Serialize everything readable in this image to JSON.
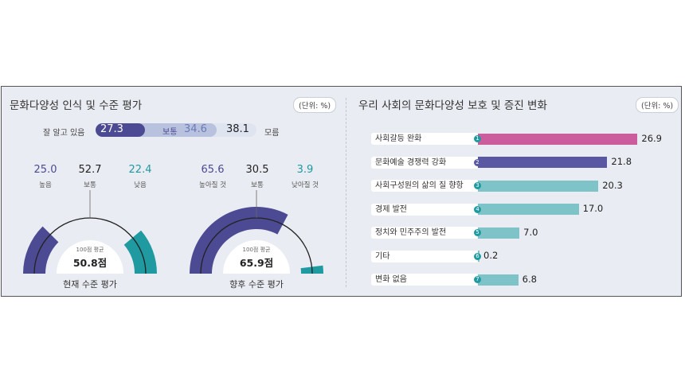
{
  "left_panel": {
    "title": "문화다양성 인식 및 수준 평가",
    "unit": "(단위: %)",
    "awareness": {
      "left_label": "잘 알고 있음",
      "mid_label": "보통",
      "right_label": "모름",
      "well_known": "27.3",
      "normal": "34.6",
      "unknown": "38.1"
    },
    "current": {
      "caption": "현재 수준 평가",
      "high_val": "25.0",
      "high_lab": "높음",
      "mid_val": "52.7",
      "mid_lab": "보통",
      "low_val": "22.4",
      "low_lab": "낮음",
      "avg_label": "100점 평균",
      "avg_value": "50.8점"
    },
    "future": {
      "caption": "향후 수준 평가",
      "high_val": "65.6",
      "high_lab": "높아질 것",
      "mid_val": "30.5",
      "mid_lab": "보통",
      "low_val": "3.9",
      "low_lab": "낮아질 것",
      "avg_label": "100점 평균",
      "avg_value": "65.9점"
    }
  },
  "right_panel": {
    "title": "우리 사회의 문화다양성 보호 및 증진 변화",
    "unit": "(단위: %)"
  },
  "colors": {
    "navy": "#4c4a92",
    "light": "#b8c1de",
    "teal": "#1f9aa0",
    "pink": "#cc5d9d",
    "purple": "#5a58a2",
    "lightteal": "#7dc3c8"
  },
  "chart_data": [
    {
      "type": "bar",
      "title": "문화다양성 인식",
      "categories": [
        "잘 알고 있음",
        "보통",
        "모름"
      ],
      "values": [
        27.3,
        34.6,
        38.1
      ]
    },
    {
      "type": "pie",
      "title": "현재 수준 평가",
      "categories": [
        "높음",
        "보통",
        "낮음"
      ],
      "values": [
        25.0,
        52.7,
        22.4
      ]
    },
    {
      "type": "pie",
      "title": "향후 수준 평가",
      "categories": [
        "높아질 것",
        "보통",
        "낮아질 것"
      ],
      "values": [
        65.6,
        30.5,
        3.9
      ]
    },
    {
      "type": "bar",
      "title": "우리 사회의 문화다양성 보호 및 증진 변화",
      "categories": [
        "사회갈등 완화",
        "문화예술 경쟁력 강화",
        "사회구성원의 삶의 질 향항",
        "경제 발전",
        "정치와 민주주의 발전",
        "기타",
        "변화 없음"
      ],
      "values": [
        26.9,
        21.8,
        20.3,
        17.0,
        7.0,
        0.2,
        6.8
      ],
      "value_labels": [
        "26.9",
        "21.8",
        "20.3",
        "17.0",
        "7.0",
        "0.2",
        "6.8"
      ],
      "markers": [
        "1",
        "2",
        "3",
        "4",
        "5",
        "6",
        "7"
      ]
    }
  ]
}
